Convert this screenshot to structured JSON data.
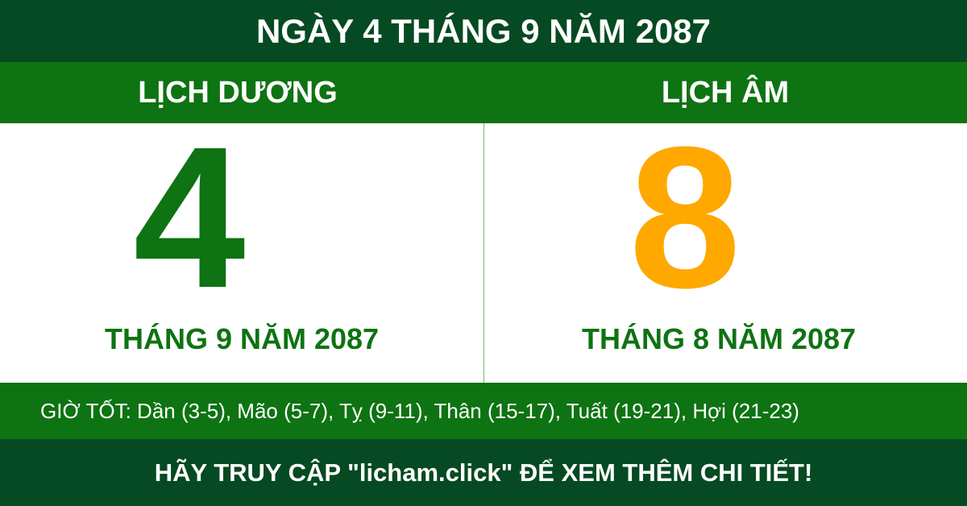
{
  "header": {
    "title": "NGÀY 4 THÁNG 9 NĂM 2087"
  },
  "solar": {
    "label": "LỊCH DƯƠNG",
    "day": "4",
    "month_year": "THÁNG 9 NĂM 2087"
  },
  "lunar": {
    "label": "LỊCH ÂM",
    "day": "8",
    "month_year": "THÁNG 8 NĂM 2087"
  },
  "good_hours": "GIỜ TỐT: Dần (3-5), Mão (5-7), Tỵ (9-11), Thân (15-17), Tuất (19-21), Hợi (21-23)",
  "footer": {
    "text": "HÃY TRUY CẬP \"licham.click\" ĐỂ XEM THÊM CHI TIẾT!"
  }
}
